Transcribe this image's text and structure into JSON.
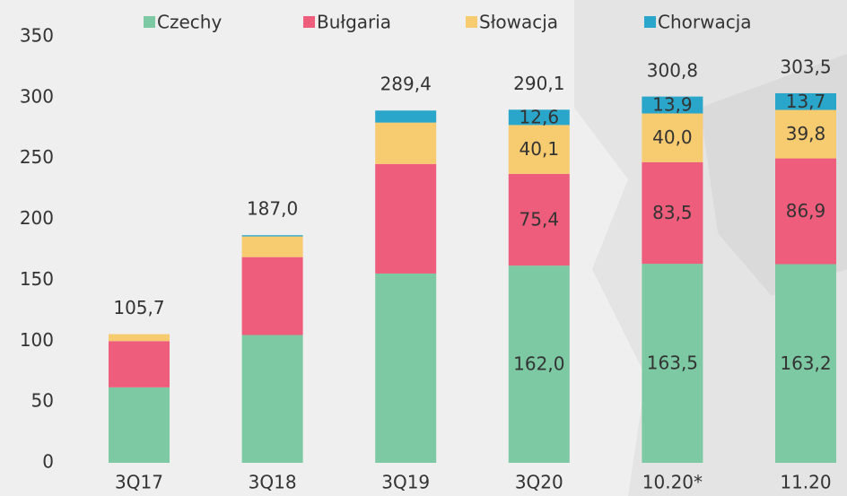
{
  "chart_data": {
    "type": "stacked_bar",
    "categories": [
      "3Q17",
      "3Q18",
      "3Q19",
      "3Q20",
      "10.20*",
      "11.20"
    ],
    "series": [
      {
        "name": "Czechy",
        "color": "#7cc9a3",
        "values": [
          62,
          105,
          155.5,
          162.0,
          163.5,
          163.2
        ],
        "value_labels": [
          null,
          null,
          null,
          "162,0",
          "163,5",
          "163,2"
        ]
      },
      {
        "name": "Bułgaria",
        "color": "#ef5d7d",
        "values": [
          38,
          64,
          90,
          75.4,
          83.5,
          86.9
        ],
        "value_labels": [
          null,
          null,
          null,
          "75,4",
          "83,5",
          "86,9"
        ]
      },
      {
        "name": "Słowacja",
        "color": "#f7cb6f",
        "values": [
          5.7,
          17,
          34,
          40.1,
          40.0,
          39.8
        ],
        "value_labels": [
          null,
          null,
          null,
          "40,1",
          "40,0",
          "39,8"
        ]
      },
      {
        "name": "Chorwacja",
        "color": "#2ba6cb",
        "values": [
          0,
          1.0,
          9.9,
          12.6,
          13.9,
          13.7
        ],
        "value_labels": [
          null,
          null,
          null,
          "12,6",
          "13,9",
          "13,7"
        ]
      }
    ],
    "totals": [
      105.7,
      187.0,
      289.4,
      290.1,
      300.8,
      303.5
    ],
    "total_labels": [
      "105,7",
      "187,0",
      "289,4",
      "290,1",
      "300,8",
      "303,5"
    ],
    "ylim": [
      0,
      350
    ],
    "yticks": [
      0,
      50,
      100,
      150,
      200,
      250,
      300,
      350
    ]
  }
}
